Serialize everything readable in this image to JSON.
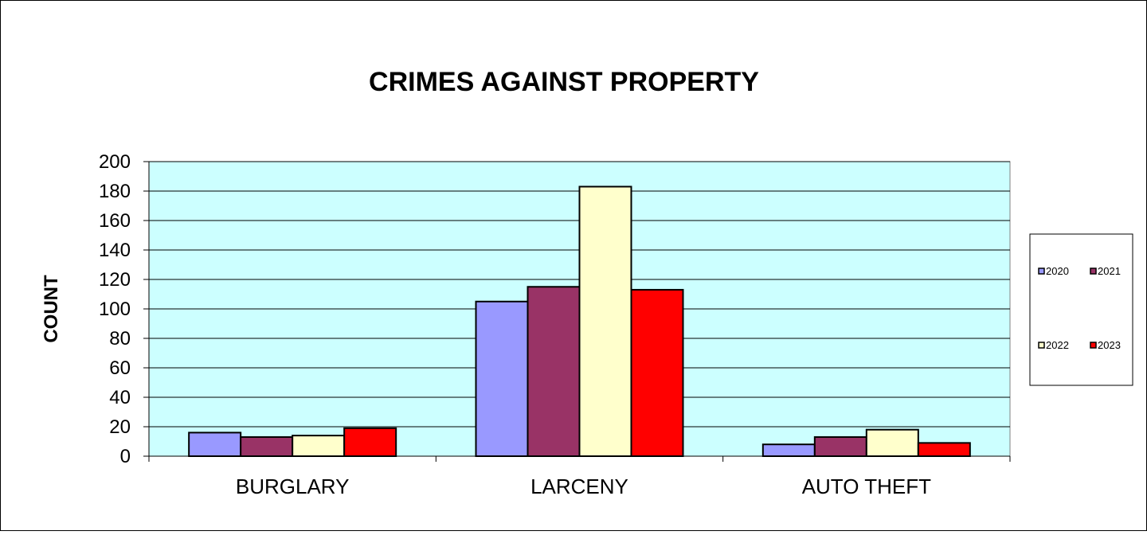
{
  "chart_data": {
    "type": "bar",
    "title": "CRIMES AGAINST PROPERTY",
    "xlabel": "",
    "ylabel": "COUNT",
    "categories": [
      "BURGLARY",
      "LARCENY",
      "AUTO THEFT"
    ],
    "series": [
      {
        "name": "2020",
        "values": [
          16,
          105,
          8
        ],
        "color": "#9999ff"
      },
      {
        "name": "2021",
        "values": [
          13,
          115,
          13
        ],
        "color": "#993366"
      },
      {
        "name": "2022",
        "values": [
          14,
          183,
          18
        ],
        "color": "#ffffcc"
      },
      {
        "name": "2023",
        "values": [
          19,
          113,
          9
        ],
        "color": "#ff0000"
      }
    ],
    "ylim": [
      0,
      200
    ],
    "yticks": [
      0,
      20,
      40,
      60,
      80,
      100,
      120,
      140,
      160,
      180,
      200
    ],
    "grid": true,
    "plot_background": "#ccffff",
    "legend_position": "right"
  }
}
